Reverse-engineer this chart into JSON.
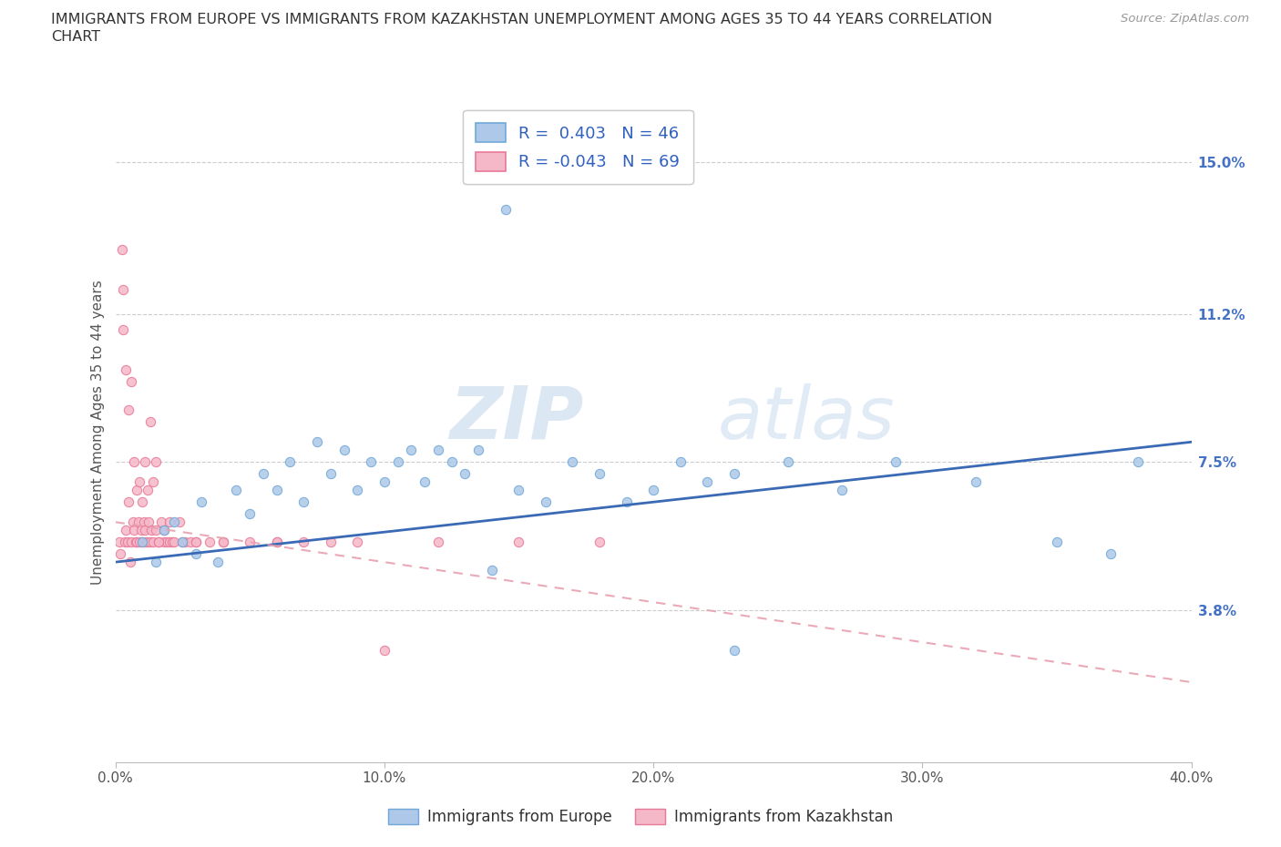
{
  "title_line1": "IMMIGRANTS FROM EUROPE VS IMMIGRANTS FROM KAZAKHSTAN UNEMPLOYMENT AMONG AGES 35 TO 44 YEARS CORRELATION",
  "title_line2": "CHART",
  "source": "Source: ZipAtlas.com",
  "xlabel_ticks": [
    "0.0%",
    "10.0%",
    "20.0%",
    "30.0%",
    "40.0%"
  ],
  "xlabel_vals": [
    0.0,
    10.0,
    20.0,
    30.0,
    40.0
  ],
  "ylabel_ticks": [
    "3.8%",
    "7.5%",
    "11.2%",
    "15.0%"
  ],
  "ylabel_vals": [
    3.8,
    7.5,
    11.2,
    15.0
  ],
  "xlim": [
    0.0,
    40.0
  ],
  "ylim": [
    0.0,
    16.5
  ],
  "watermark_zip": "ZIP",
  "watermark_atlas": "atlas",
  "blue_R": 0.403,
  "blue_N": 46,
  "pink_R": -0.043,
  "pink_N": 69,
  "blue_color": "#adc8e8",
  "pink_color": "#f5b8c8",
  "blue_edge": "#6fa8d8",
  "pink_edge": "#e87898",
  "trend_blue": "#3a6ab5",
  "trend_pink": "#e8a0b0",
  "legend_label_blue": "Immigrants from Europe",
  "legend_label_pink": "Immigrants from Kazakhstan",
  "ylabel": "Unemployment Among Ages 35 to 44 years",
  "blue_x": [
    1.0,
    1.5,
    1.8,
    2.2,
    2.5,
    3.0,
    3.2,
    3.8,
    4.5,
    5.0,
    5.5,
    6.0,
    6.5,
    7.0,
    7.5,
    8.0,
    8.5,
    9.0,
    9.5,
    10.0,
    10.5,
    11.0,
    11.5,
    12.0,
    12.5,
    13.0,
    13.5,
    14.0,
    15.0,
    16.0,
    17.0,
    18.0,
    19.0,
    20.0,
    21.0,
    22.0,
    23.0,
    25.0,
    27.0,
    29.0,
    32.0,
    35.0,
    37.0,
    38.0,
    14.5,
    23.0
  ],
  "blue_y": [
    5.5,
    5.0,
    5.8,
    6.0,
    5.5,
    5.2,
    6.5,
    5.0,
    6.8,
    6.2,
    7.2,
    6.8,
    7.5,
    6.5,
    8.0,
    7.2,
    7.8,
    6.8,
    7.5,
    7.0,
    7.5,
    7.8,
    7.0,
    7.8,
    7.5,
    7.2,
    7.8,
    4.8,
    6.8,
    6.5,
    7.5,
    7.2,
    6.5,
    6.8,
    7.5,
    7.0,
    7.2,
    7.5,
    6.8,
    7.5,
    7.0,
    5.5,
    5.2,
    7.5,
    13.8,
    2.8
  ],
  "pink_x": [
    0.15,
    0.2,
    0.25,
    0.3,
    0.35,
    0.4,
    0.45,
    0.5,
    0.55,
    0.6,
    0.65,
    0.7,
    0.75,
    0.8,
    0.85,
    0.9,
    0.95,
    1.0,
    1.05,
    1.1,
    1.15,
    1.2,
    1.25,
    1.3,
    1.35,
    1.4,
    1.5,
    1.6,
    1.7,
    1.8,
    1.9,
    2.0,
    2.1,
    2.2,
    2.4,
    2.6,
    2.8,
    3.0,
    3.5,
    4.0,
    5.0,
    6.0,
    7.0,
    8.0,
    9.0,
    10.0,
    12.0,
    15.0,
    18.0,
    0.3,
    0.4,
    0.5,
    0.6,
    0.7,
    0.8,
    0.9,
    1.0,
    1.1,
    1.2,
    1.3,
    1.4,
    1.5,
    1.6,
    1.8,
    2.0,
    2.5,
    3.0,
    4.0,
    6.0
  ],
  "pink_y": [
    5.5,
    5.2,
    12.8,
    11.8,
    5.5,
    5.8,
    5.5,
    6.5,
    5.0,
    5.5,
    6.0,
    5.8,
    5.5,
    5.5,
    6.0,
    5.5,
    5.8,
    5.5,
    6.0,
    5.8,
    5.5,
    5.5,
    6.0,
    5.5,
    5.8,
    5.5,
    5.8,
    5.5,
    6.0,
    5.5,
    5.5,
    5.5,
    5.5,
    5.5,
    6.0,
    5.5,
    5.5,
    5.5,
    5.5,
    5.5,
    5.5,
    5.5,
    5.5,
    5.5,
    5.5,
    2.8,
    5.5,
    5.5,
    5.5,
    10.8,
    9.8,
    8.8,
    9.5,
    7.5,
    6.8,
    7.0,
    6.5,
    7.5,
    6.8,
    8.5,
    7.0,
    7.5,
    5.5,
    5.8,
    6.0,
    5.5,
    5.5,
    5.5,
    5.5
  ],
  "grid_color": "#cccccc",
  "bg_color": "#ffffff",
  "dot_size": 55
}
